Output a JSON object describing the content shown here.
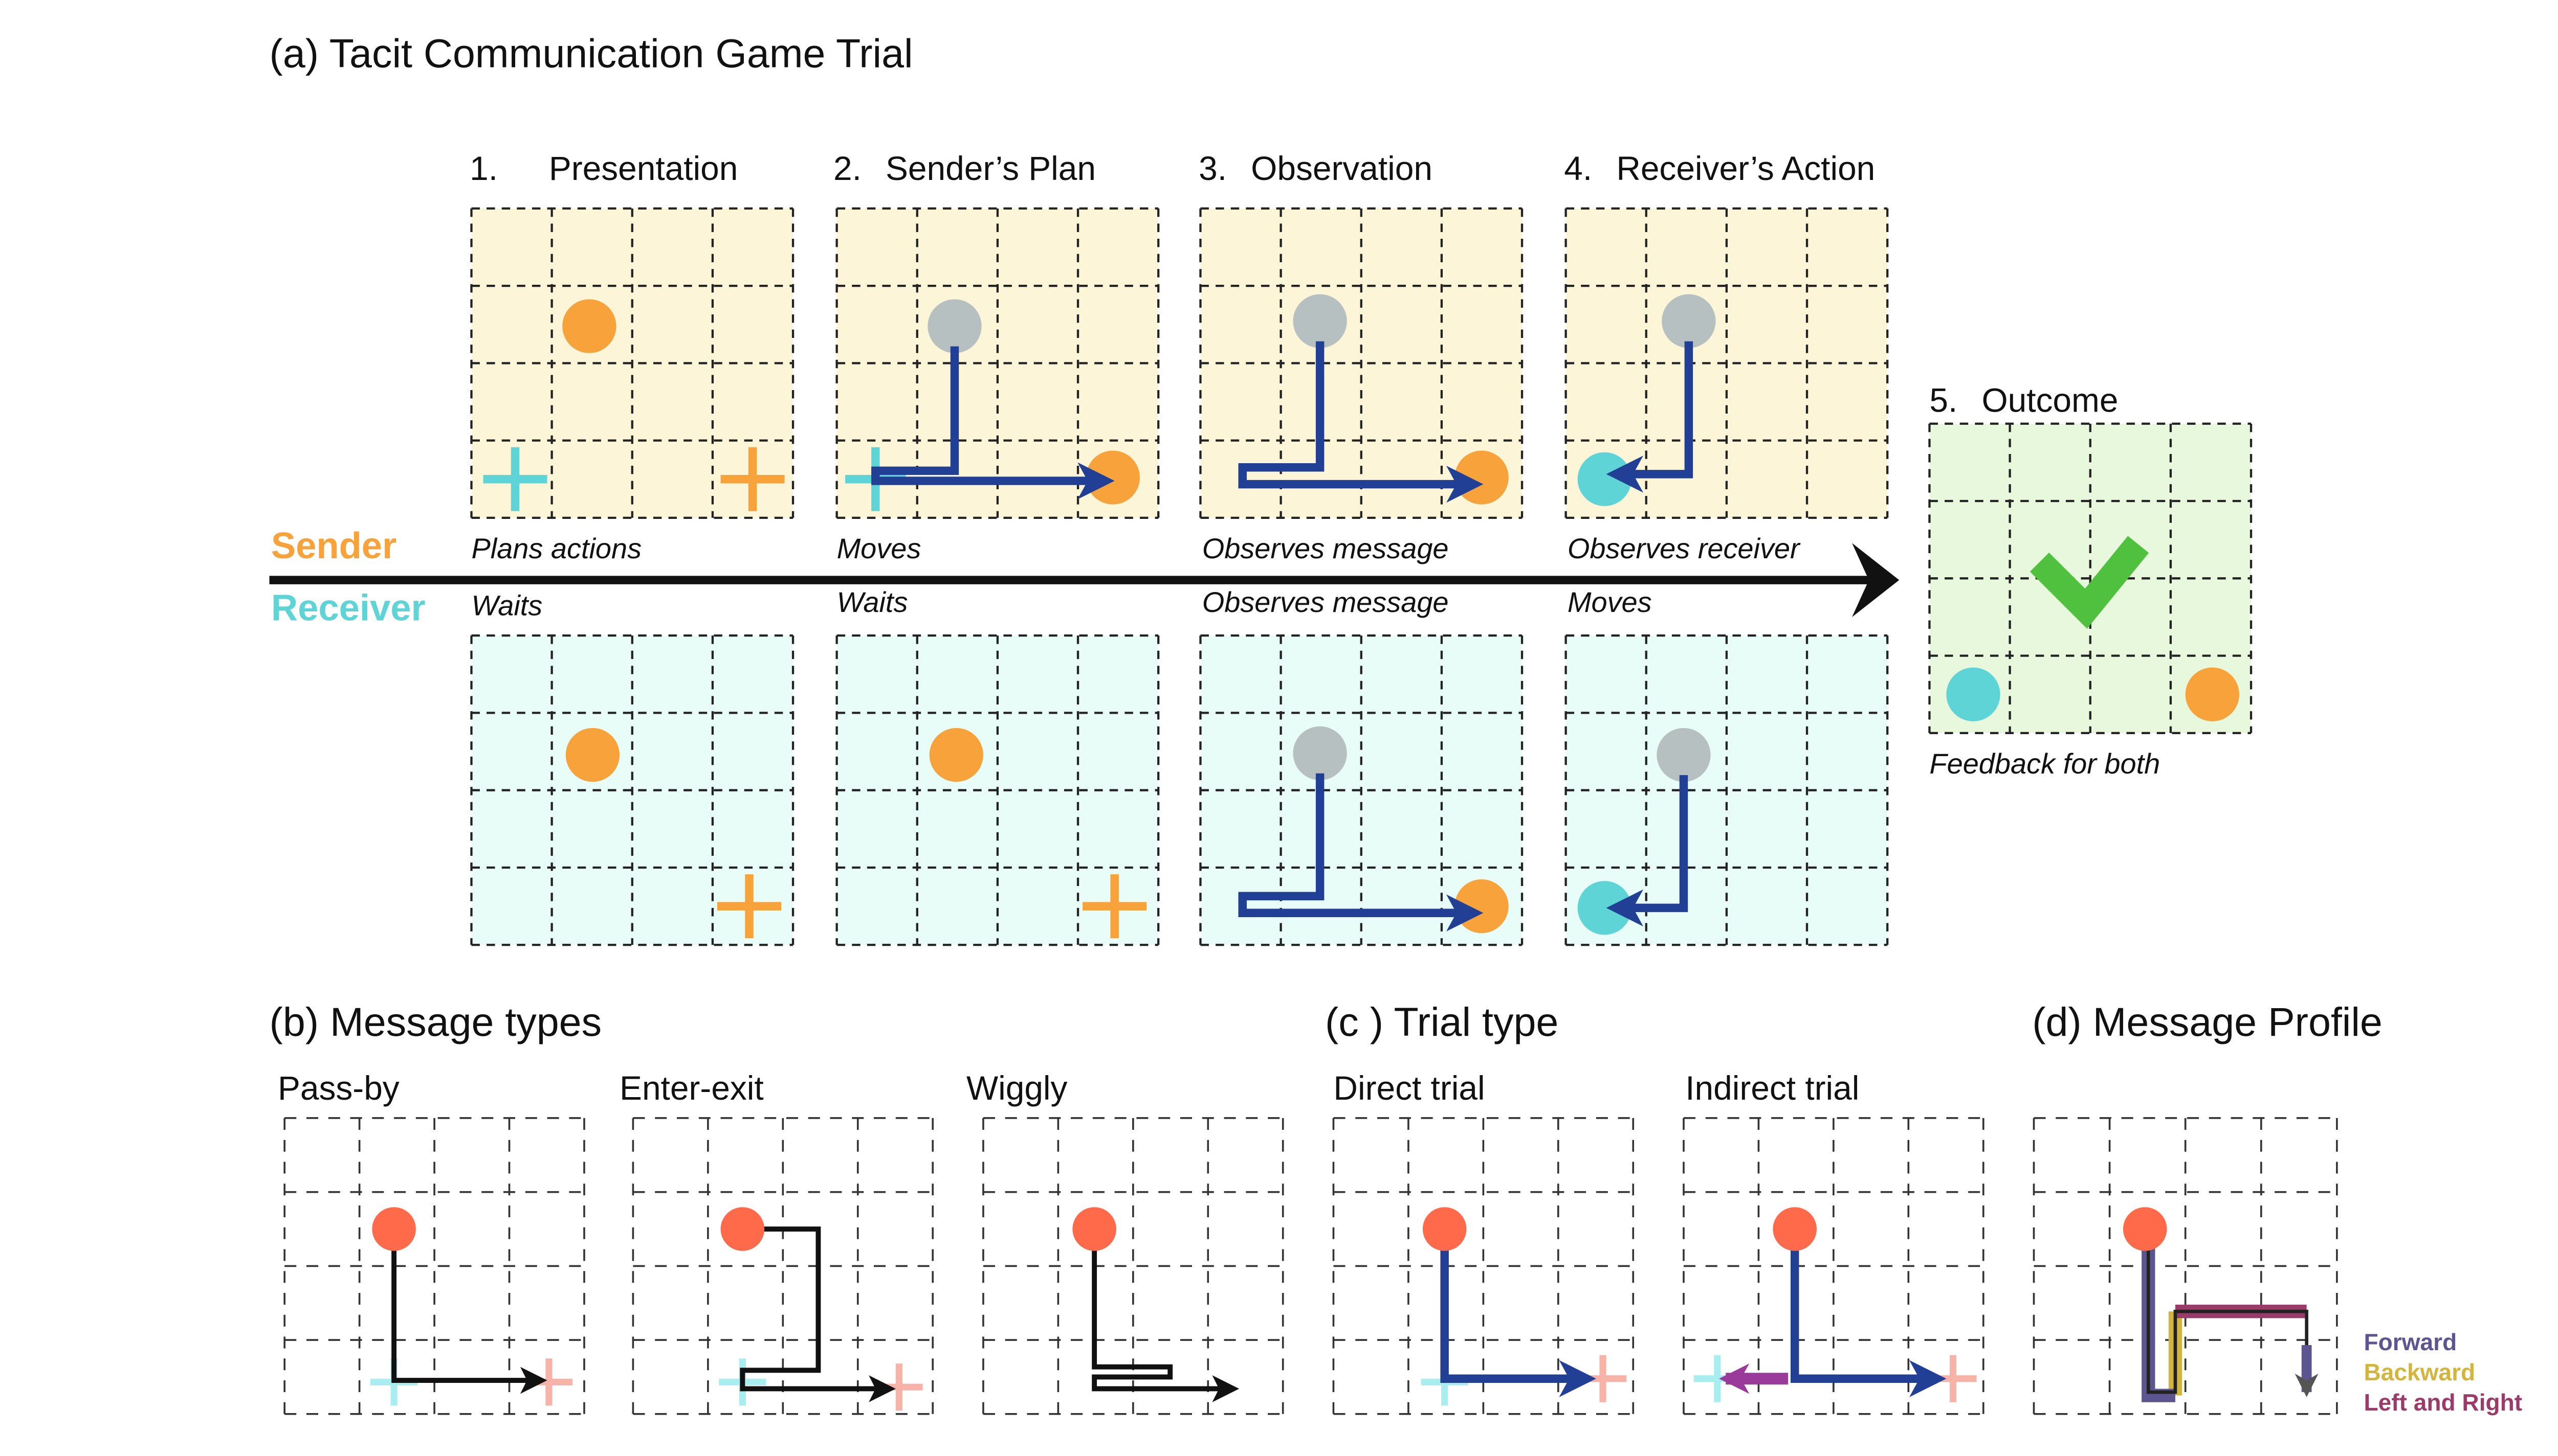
{
  "title": "(a) Tacit Communication Game Trial",
  "colors": {
    "sender_orange": "#f7a23b",
    "receiver_cyan": "#5fd4d6",
    "sender_fill": "#fcf5d8",
    "receiver_fill": "#e8fcf8",
    "outcome_fill": "#e7f8dc",
    "gray_piece": "#b7c0c0",
    "message_blue": "#213f94",
    "check_green": "#4fc13f",
    "red_dot": "#ff6a4a",
    "forward": "#5c5590",
    "backward": "#d3b53e",
    "left_right": "#9b3b6a"
  },
  "steps": [
    {
      "number": "1.",
      "label": "Presentation",
      "sender_caption": "Plans actions",
      "receiver_caption": "Waits"
    },
    {
      "number": "2.",
      "label": "Sender’s Plan",
      "sender_caption": "Moves",
      "receiver_caption": "Waits"
    },
    {
      "number": "3.",
      "label": "Observation",
      "sender_caption": "Observes message",
      "receiver_caption": "Observes message"
    },
    {
      "number": "4.",
      "label": "Receiver’s Action",
      "sender_caption": "Observes receiver",
      "receiver_caption": "Moves"
    }
  ],
  "outcome": {
    "number": "5.",
    "label": "Outcome",
    "caption": "Feedback for both"
  },
  "roles": {
    "sender": "Sender",
    "receiver": "Receiver"
  },
  "sections": {
    "message_types": "(b) Message types",
    "trial_type": "(c ) Trial type",
    "message_profile": "(d) Message Profile"
  },
  "message_types": [
    "Pass-by",
    "Enter-exit",
    "Wiggly"
  ],
  "trial_types": [
    "Direct trial",
    "Indirect trial"
  ],
  "profile_legend": [
    "Forward",
    "Backward",
    "Left and Right"
  ]
}
